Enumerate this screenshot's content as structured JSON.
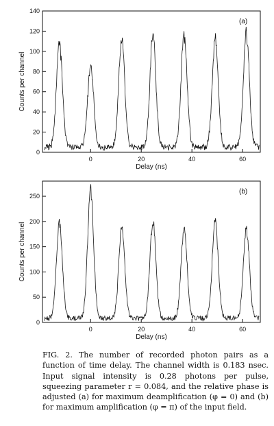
{
  "chart_data": [
    {
      "type": "line",
      "panel_label": "(a)",
      "xlabel": "Delay (ns)",
      "ylabel": "Counts per channel",
      "xlim": [
        -19,
        67
      ],
      "ylim": [
        0,
        140
      ],
      "xticks": [
        0,
        20,
        40,
        60
      ],
      "yticks": [
        0,
        20,
        40,
        60,
        80,
        100,
        120,
        140
      ],
      "background_level": 5,
      "peaks": [
        {
          "x": -12.3,
          "y": 106
        },
        {
          "x": 0.0,
          "y": 85
        },
        {
          "x": 12.3,
          "y": 113
        },
        {
          "x": 24.6,
          "y": 115
        },
        {
          "x": 36.9,
          "y": 117
        },
        {
          "x": 49.2,
          "y": 112
        },
        {
          "x": 61.5,
          "y": 116
        }
      ],
      "peak_fwhm_ns": 2.8,
      "grid": false
    },
    {
      "type": "line",
      "panel_label": "(b)",
      "xlabel": "Delay (ns)",
      "ylabel": "Counts per channel",
      "xlim": [
        -19,
        67
      ],
      "ylim": [
        0,
        280
      ],
      "xticks": [
        0,
        20,
        40,
        60
      ],
      "yticks": [
        0,
        50,
        100,
        150,
        200,
        250
      ],
      "background_level": 8,
      "peaks": [
        {
          "x": -12.3,
          "y": 197
        },
        {
          "x": 0.0,
          "y": 262
        },
        {
          "x": 12.3,
          "y": 188
        },
        {
          "x": 24.6,
          "y": 200
        },
        {
          "x": 36.9,
          "y": 186
        },
        {
          "x": 49.2,
          "y": 198
        },
        {
          "x": 61.5,
          "y": 183
        }
      ],
      "peak_fwhm_ns": 2.8,
      "grid": false
    }
  ],
  "caption": {
    "label": "FIG. 2.",
    "text": "The number of recorded photon pairs as a function of time delay. The channel width is 0.183 nsec. Input signal intensity is 0.28 photons per pulse, squeezing parameter r = 0.084, and the relative phase is adjusted (a) for maximum deamplification (φ = 0) and (b) for maximum amplification (φ = π) of the input field."
  }
}
